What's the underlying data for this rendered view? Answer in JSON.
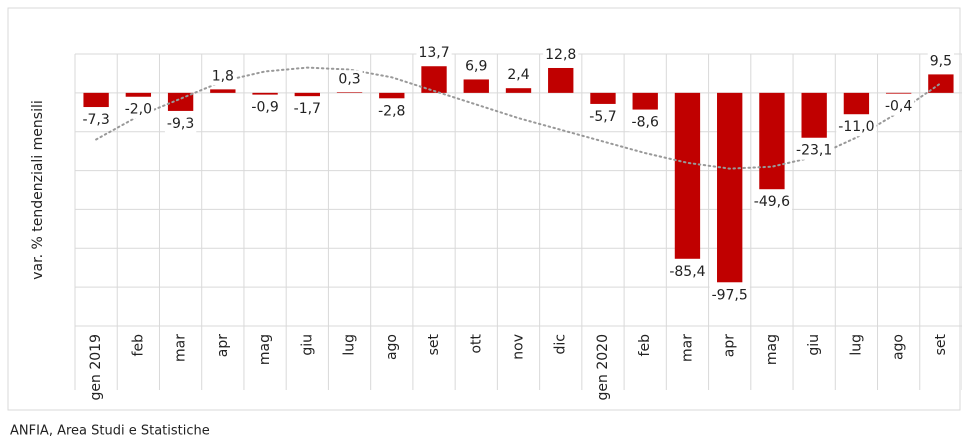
{
  "chart_data": {
    "type": "bar",
    "y_label": "var. % tendenziali mensili",
    "source": "ANFIA, Area Studi e Statistiche",
    "categories": [
      "gen 2019",
      "feb",
      "mar",
      "apr",
      "mag",
      "giu",
      "lug",
      "ago",
      "set",
      "ott",
      "nov",
      "dic",
      "gen 2020",
      "feb",
      "mar",
      "apr",
      "mag",
      "giu",
      "lug",
      "ago",
      "set"
    ],
    "values": [
      -7.3,
      -2.0,
      -9.3,
      1.8,
      -0.9,
      -1.7,
      0.3,
      -2.8,
      13.7,
      6.9,
      2.4,
      12.8,
      -5.7,
      -8.6,
      -85.4,
      -97.5,
      -49.6,
      -23.1,
      -11.0,
      -0.4,
      9.5
    ],
    "value_labels": [
      "-7,3",
      "-2,0",
      "-9,3",
      "1,8",
      "-0,9",
      "-1,7",
      "0,3",
      "-2,8",
      "13,7",
      "6,9",
      "2,4",
      "12,8",
      "-5,7",
      "-8,6",
      "-85,4",
      "-97,5",
      "-49,6",
      "-23,1",
      "-11,0",
      "-0,4",
      "9,5"
    ],
    "color": "#c00000",
    "trend": {
      "values": [
        -24,
        -12,
        -3,
        6,
        11,
        13,
        12,
        8,
        1,
        -6,
        -13,
        -19,
        -25,
        -31,
        -36,
        -39,
        -38,
        -33,
        -23,
        -10,
        5
      ],
      "color": "#999999"
    },
    "ylim": [
      -120,
      20
    ],
    "yticks": [
      -120,
      -100,
      -80,
      -60,
      -40,
      -20,
      0,
      20
    ],
    "y_tick_labels": false,
    "grid": true
  }
}
